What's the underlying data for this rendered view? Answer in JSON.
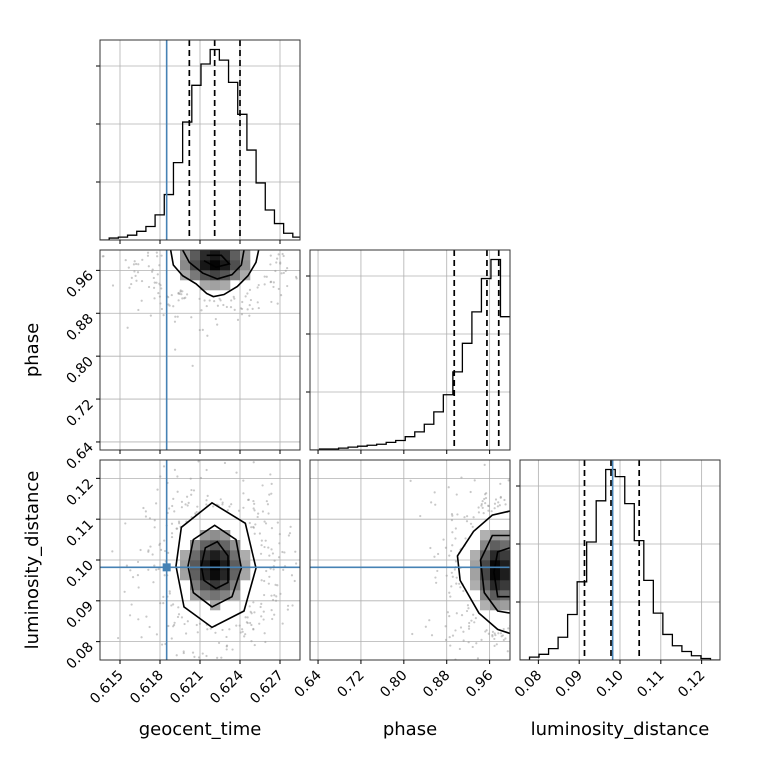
{
  "chart_data": {
    "type": "corner",
    "parameters": [
      {
        "name": "geocent_time",
        "label": "geocent_time",
        "range": [
          0.6135,
          0.6285
        ],
        "ticks": [
          0.615,
          0.618,
          0.621,
          0.624,
          0.627
        ],
        "tick_labels": [
          "0.615",
          "0.618",
          "0.621",
          "0.624",
          "0.627"
        ],
        "truth": 0.6185,
        "quantiles": [
          0.6202,
          0.6221,
          0.624
        ],
        "hist_bins": [
          0.6135,
          0.62865
        ],
        "hist_counts": [
          0,
          2,
          3,
          5,
          9,
          14,
          26,
          47,
          80,
          122,
          160,
          182,
          197,
          186,
          163,
          130,
          93,
          59,
          31,
          17,
          7,
          3
        ]
      },
      {
        "name": "phase",
        "label": "phase",
        "range": [
          0.625,
          0.998
        ],
        "ticks": [
          0.64,
          0.72,
          0.8,
          0.88,
          0.96
        ],
        "tick_labels": [
          "0.64",
          "0.72",
          "0.80",
          "0.88",
          "0.96"
        ],
        "truth": null,
        "quantiles": [
          0.894,
          0.955,
          0.977
        ],
        "hist_bins": [
          0.625,
          0.998
        ],
        "hist_counts": [
          0,
          1,
          1,
          2,
          3,
          4,
          5,
          6,
          8,
          10,
          14,
          19,
          27,
          40,
          58,
          82,
          112,
          145,
          180,
          200,
          140
        ]
      },
      {
        "name": "luminosity_distance",
        "label": "luminosity_distance",
        "range": [
          0.0755,
          0.1245
        ],
        "ticks": [
          0.08,
          0.09,
          0.1,
          0.11,
          0.12
        ],
        "tick_labels": [
          "0.08",
          "0.09",
          "0.10",
          "0.11",
          "0.12"
        ],
        "truth": 0.0982,
        "quantiles": [
          0.0913,
          0.0978,
          0.1047
        ],
        "hist_bins": [
          0.0755,
          0.1245
        ],
        "hist_counts": [
          0,
          2,
          4,
          8,
          16,
          32,
          55,
          83,
          112,
          134,
          129,
          110,
          84,
          56,
          33,
          18,
          10,
          6,
          3,
          1,
          0
        ]
      }
    ],
    "pairs": [
      {
        "x": "geocent_time",
        "y": "phase",
        "contours": [
          [
            [
              0.6188,
              0.998
            ],
            [
              0.619,
              0.97
            ],
            [
              0.6197,
              0.95
            ],
            [
              0.6207,
              0.935
            ],
            [
              0.6215,
              0.917
            ],
            [
              0.622,
              0.911
            ],
            [
              0.6228,
              0.915
            ],
            [
              0.6238,
              0.93
            ],
            [
              0.6246,
              0.95
            ],
            [
              0.6252,
              0.975
            ],
            [
              0.6254,
              0.998
            ]
          ],
          [
            [
              0.6197,
              0.998
            ],
            [
              0.6202,
              0.975
            ],
            [
              0.6212,
              0.955
            ],
            [
              0.6223,
              0.944
            ],
            [
              0.6234,
              0.952
            ],
            [
              0.6241,
              0.97
            ],
            [
              0.6243,
              0.998
            ]
          ],
          [
            [
              0.6213,
              0.978
            ],
            [
              0.6222,
              0.966
            ],
            [
              0.6232,
              0.972
            ],
            [
              0.6226,
              0.988
            ],
            [
              0.6215,
              0.988
            ]
          ]
        ]
      },
      {
        "x": "geocent_time",
        "y": "luminosity_distance",
        "contours": [
          [
            [
              0.6192,
              0.0985
            ],
            [
              0.6196,
              0.108
            ],
            [
              0.6219,
              0.114
            ],
            [
              0.6244,
              0.109
            ],
            [
              0.6252,
              0.098
            ],
            [
              0.6243,
              0.0875
            ],
            [
              0.6219,
              0.0835
            ],
            [
              0.6198,
              0.0885
            ]
          ],
          [
            [
              0.6201,
              0.0985
            ],
            [
              0.6205,
              0.105
            ],
            [
              0.6221,
              0.1085
            ],
            [
              0.6237,
              0.105
            ],
            [
              0.6241,
              0.098
            ],
            [
              0.6234,
              0.091
            ],
            [
              0.6219,
              0.0885
            ],
            [
              0.6205,
              0.092
            ]
          ],
          [
            [
              0.6211,
              0.0985
            ],
            [
              0.6214,
              0.103
            ],
            [
              0.6223,
              0.1045
            ],
            [
              0.6231,
              0.101
            ],
            [
              0.6231,
              0.0945
            ],
            [
              0.6222,
              0.093
            ],
            [
              0.6213,
              0.095
            ]
          ]
        ]
      },
      {
        "x": "phase",
        "y": "luminosity_distance",
        "contours": [
          [
            [
              0.998,
              0.112
            ],
            [
              0.965,
              0.111
            ],
            [
              0.93,
              0.107
            ],
            [
              0.9,
              0.101
            ],
            [
              0.905,
              0.095
            ],
            [
              0.94,
              0.087
            ],
            [
              0.975,
              0.083
            ],
            [
              0.998,
              0.082
            ]
          ],
          [
            [
              0.998,
              0.106
            ],
            [
              0.965,
              0.106
            ],
            [
              0.943,
              0.1
            ],
            [
              0.95,
              0.092
            ],
            [
              0.975,
              0.0875
            ],
            [
              0.998,
              0.087
            ]
          ],
          [
            [
              0.998,
              0.103
            ],
            [
              0.975,
              0.102
            ],
            [
              0.968,
              0.097
            ],
            [
              0.975,
              0.091
            ],
            [
              0.998,
              0.091
            ]
          ]
        ]
      }
    ],
    "density_peaks": [
      {
        "x": "geocent_time",
        "y": "phase",
        "center": [
          0.6221,
          0.975
        ],
        "spread": [
          0.0018,
          0.03
        ]
      },
      {
        "x": "geocent_time",
        "y": "luminosity_distance",
        "center": [
          0.6221,
          0.0982
        ],
        "spread": [
          0.0016,
          0.0062
        ]
      },
      {
        "x": "phase",
        "y": "luminosity_distance",
        "center": [
          0.975,
          0.0975
        ],
        "spread": [
          0.03,
          0.0065
        ]
      }
    ],
    "truth_marker": {
      "x": "geocent_time",
      "y": "luminosity_distance",
      "point": [
        0.6185,
        0.0982
      ]
    },
    "grid": true,
    "colors": {
      "truth": "#4682b4",
      "hist": "#000000",
      "density": "#000000",
      "grid": "#b0b0b0"
    }
  }
}
